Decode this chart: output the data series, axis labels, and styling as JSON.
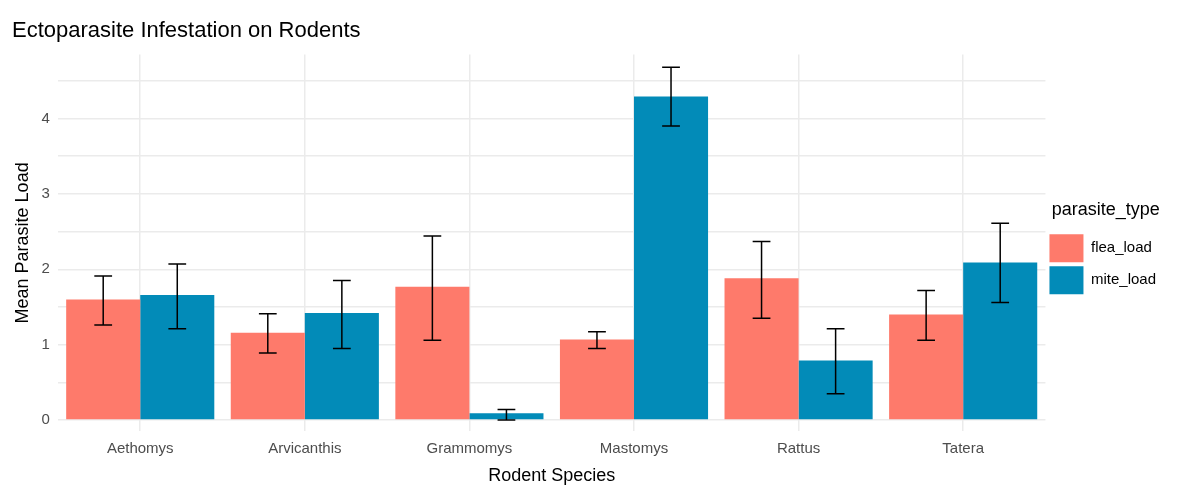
{
  "chart_data": {
    "type": "bar",
    "title": "Ectoparasite Infestation on Rodents",
    "xlabel": "Rodent Species",
    "ylabel": "Mean Parasite Load",
    "legend_title": "parasite_type",
    "legend": "right",
    "grid": true,
    "categories": [
      "Aethomys",
      "Arvicanthis",
      "Grammomys",
      "Mastomys",
      "Rattus",
      "Tatera"
    ],
    "series": [
      {
        "name": "flea_load",
        "color": "#fe7a6b",
        "values": [
          1.6,
          1.16,
          1.77,
          1.07,
          1.88,
          1.4
        ],
        "errors": [
          [
            1.26,
            1.91
          ],
          [
            0.89,
            1.41
          ],
          [
            1.06,
            2.44
          ],
          [
            0.95,
            1.17
          ],
          [
            1.35,
            2.37
          ],
          [
            1.06,
            1.72
          ]
        ]
      },
      {
        "name": "mite_load",
        "color": "#028bb8",
        "values": [
          1.66,
          1.42,
          0.09,
          4.29,
          0.79,
          2.09
        ],
        "errors": [
          [
            1.21,
            2.07
          ],
          [
            0.95,
            1.85
          ],
          [
            0,
            0.14
          ],
          [
            3.9,
            4.68
          ],
          [
            0.35,
            1.21
          ],
          [
            1.56,
            2.61
          ]
        ]
      }
    ],
    "ylim": [
      -0.15,
      4.85
    ],
    "yticks": [
      0,
      {
        "value": 0.5,
        "label": null
      },
      1,
      {
        "value": 1.5,
        "label": null
      },
      2,
      {
        "value": 2.5,
        "label": null
      },
      3,
      {
        "value": 3.5,
        "label": null
      },
      4,
      {
        "value": 4.5,
        "label": null
      }
    ]
  }
}
